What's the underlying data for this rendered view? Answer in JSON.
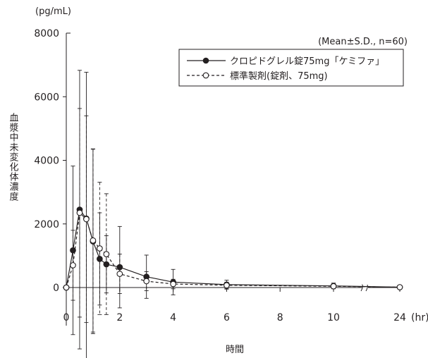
{
  "chart_data": {
    "type": "line",
    "y_unit": "(pg/mL)",
    "ylabel": "血漿中未変化体濃度",
    "xlabel": "時間",
    "x_unit": "(hr)",
    "annotation": "(Mean±S.D.,  n=60)",
    "y_ticks": [
      0,
      2000,
      4000,
      6000,
      8000
    ],
    "x_ticks": [
      0,
      2,
      4,
      6,
      8,
      10,
      24
    ],
    "ylim": [
      -1200,
      8000
    ],
    "axis_break": "between 10 and 24 hr",
    "series": [
      {
        "name": "クロピドグレル錠75mg「ケミファ」",
        "style": "solid line, filled circle",
        "color": "#231f20",
        "x": [
          0,
          0.25,
          0.5,
          0.75,
          1.0,
          1.25,
          1.5,
          2,
          3,
          4,
          6,
          10,
          24
        ],
        "y": [
          0,
          1170,
          2450,
          2170,
          1450,
          900,
          730,
          640,
          340,
          170,
          90,
          50,
          10
        ],
        "err": [
          0,
          2650,
          4380,
          4600,
          2900,
          1450,
          900,
          1280,
          680,
          400,
          140,
          90,
          25
        ]
      },
      {
        "name": "標準製剤(錠剤、75mg)",
        "style": "dashed line, open circle",
        "color": "#231f20",
        "x": [
          0,
          0.25,
          0.5,
          0.75,
          1.0,
          1.25,
          1.5,
          2,
          3,
          4,
          6,
          10,
          24
        ],
        "y": [
          0,
          700,
          2350,
          2150,
          1480,
          1230,
          1050,
          430,
          200,
          110,
          70,
          40,
          10
        ],
        "err": [
          0,
          1100,
          3280,
          3250,
          2880,
          2080,
          1900,
          620,
          300,
          150,
          100,
          60,
          20
        ]
      }
    ]
  }
}
